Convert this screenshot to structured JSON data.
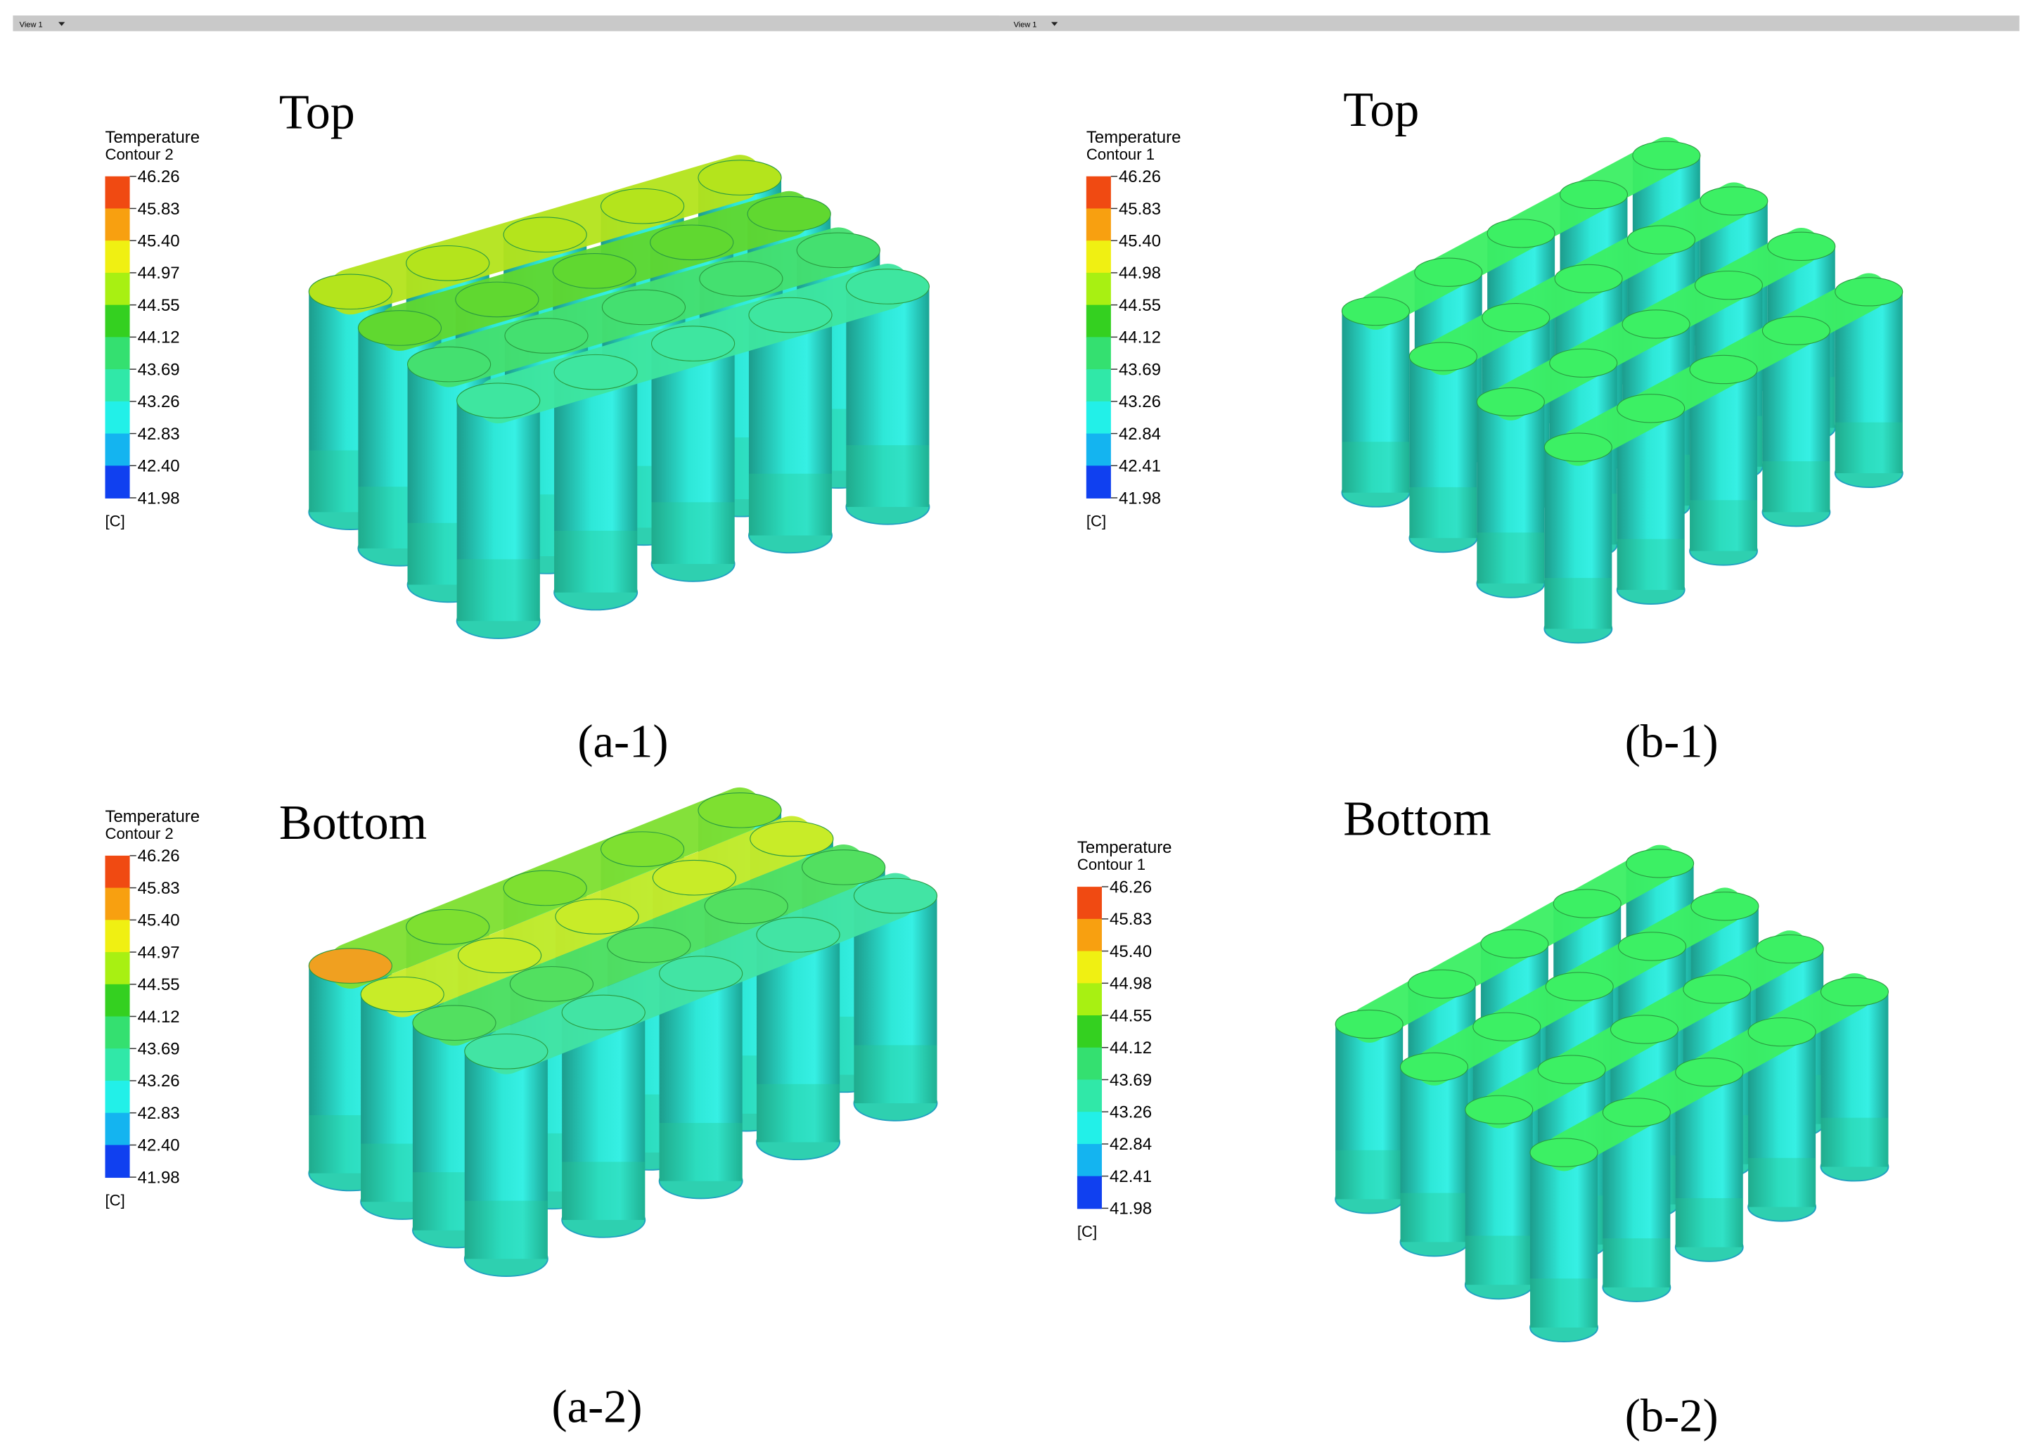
{
  "toolbar": {
    "left": "View 1",
    "right": "View 1"
  },
  "panels": [
    {
      "view": "Top",
      "caption": "(a-1)",
      "legend": {
        "title": "Temperature",
        "subtitle": "Contour 2",
        "ticks": [
          "46.26",
          "45.83",
          "45.40",
          "44.97",
          "44.55",
          "44.12",
          "43.69",
          "43.26",
          "42.83",
          "42.40",
          "41.98"
        ],
        "unit": "[C]"
      }
    },
    {
      "view": "Top",
      "caption": "(b-1)",
      "legend": {
        "title": "Temperature",
        "subtitle": "Contour 1",
        "ticks": [
          "46.26",
          "45.83",
          "45.40",
          "44.98",
          "44.55",
          "44.12",
          "43.69",
          "43.26",
          "42.84",
          "42.41",
          "41.98"
        ],
        "unit": "[C]"
      }
    },
    {
      "view": "Bottom",
      "caption": "(a-2)",
      "legend": {
        "title": "Temperature",
        "subtitle": "Contour 2",
        "ticks": [
          "46.26",
          "45.83",
          "45.40",
          "44.97",
          "44.55",
          "44.12",
          "43.69",
          "43.26",
          "42.83",
          "42.40",
          "41.98"
        ],
        "unit": "[C]"
      }
    },
    {
      "view": "Bottom",
      "caption": "(b-2)",
      "legend": {
        "title": "Temperature",
        "subtitle": "Contour 1",
        "ticks": [
          "46.26",
          "45.83",
          "45.40",
          "44.98",
          "44.55",
          "44.12",
          "43.69",
          "43.26",
          "42.84",
          "42.41",
          "41.98"
        ],
        "unit": "[C]"
      }
    }
  ]
}
